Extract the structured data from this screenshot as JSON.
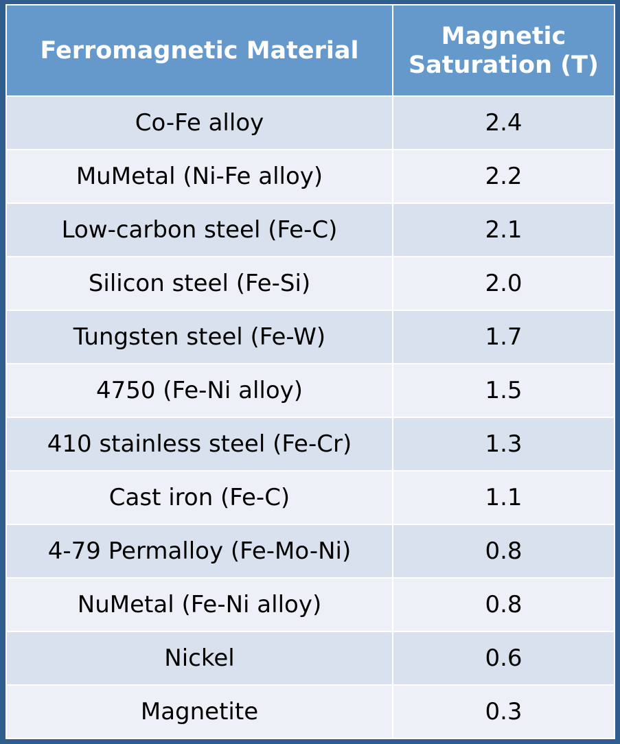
{
  "table": {
    "headers": [
      "Ferromagnetic Material",
      "Magnetic Saturation (T)"
    ],
    "rows": [
      [
        "Co-Fe alloy",
        "2.4"
      ],
      [
        "MuMetal (Ni-Fe alloy)",
        "2.2"
      ],
      [
        "Low-carbon steel (Fe-C)",
        "2.1"
      ],
      [
        "Silicon steel (Fe-Si)",
        "2.0"
      ],
      [
        "Tungsten steel (Fe-W)",
        "1.7"
      ],
      [
        "4750 (Fe-Ni alloy)",
        "1.5"
      ],
      [
        "410 stainless steel (Fe-Cr)",
        "1.3"
      ],
      [
        "Cast iron (Fe-C)",
        "1.1"
      ],
      [
        "4-79 Permalloy (Fe-Mo-Ni)",
        "0.8"
      ],
      [
        "NuMetal (Fe-Ni alloy)",
        "0.8"
      ],
      [
        "Nickel",
        "0.6"
      ],
      [
        "Magnetite",
        "0.3"
      ]
    ]
  },
  "colors": {
    "frame": "#2f5d8e",
    "header_bg": "#6599cc",
    "row_odd": "#d9e0ee",
    "row_even": "#edf0f7"
  }
}
